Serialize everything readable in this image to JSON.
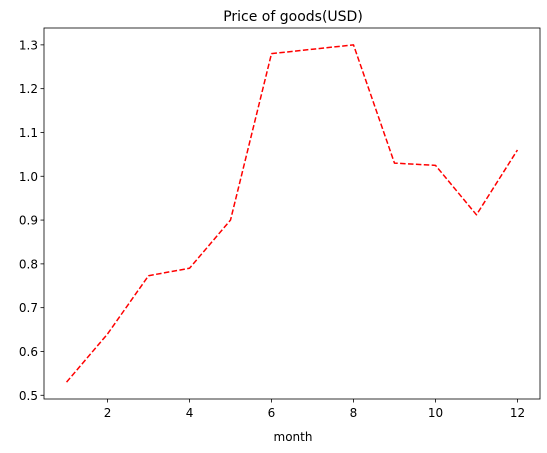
{
  "chart_data": {
    "type": "line",
    "title": "Price of goods(USD)",
    "xlabel": "month",
    "ylabel": "",
    "x": [
      1,
      2,
      3,
      4,
      5,
      6,
      7,
      8,
      9,
      10,
      11,
      12
    ],
    "series": [
      {
        "values": [
          0.53,
          0.64,
          0.773,
          0.79,
          0.9,
          1.28,
          1.29,
          1.3,
          1.03,
          1.025,
          0.912,
          1.06
        ],
        "color": "#ff0000",
        "linestyle": "dashed"
      }
    ],
    "xticks": [
      2,
      4,
      6,
      8,
      10,
      12
    ],
    "yticks": [
      0.5,
      0.6,
      0.7,
      0.8,
      0.9,
      1.0,
      1.1,
      1.2,
      1.3
    ],
    "xlim": [
      0.45,
      12.55
    ],
    "ylim": [
      0.4915,
      1.3385
    ],
    "grid": false,
    "legend": false
  }
}
